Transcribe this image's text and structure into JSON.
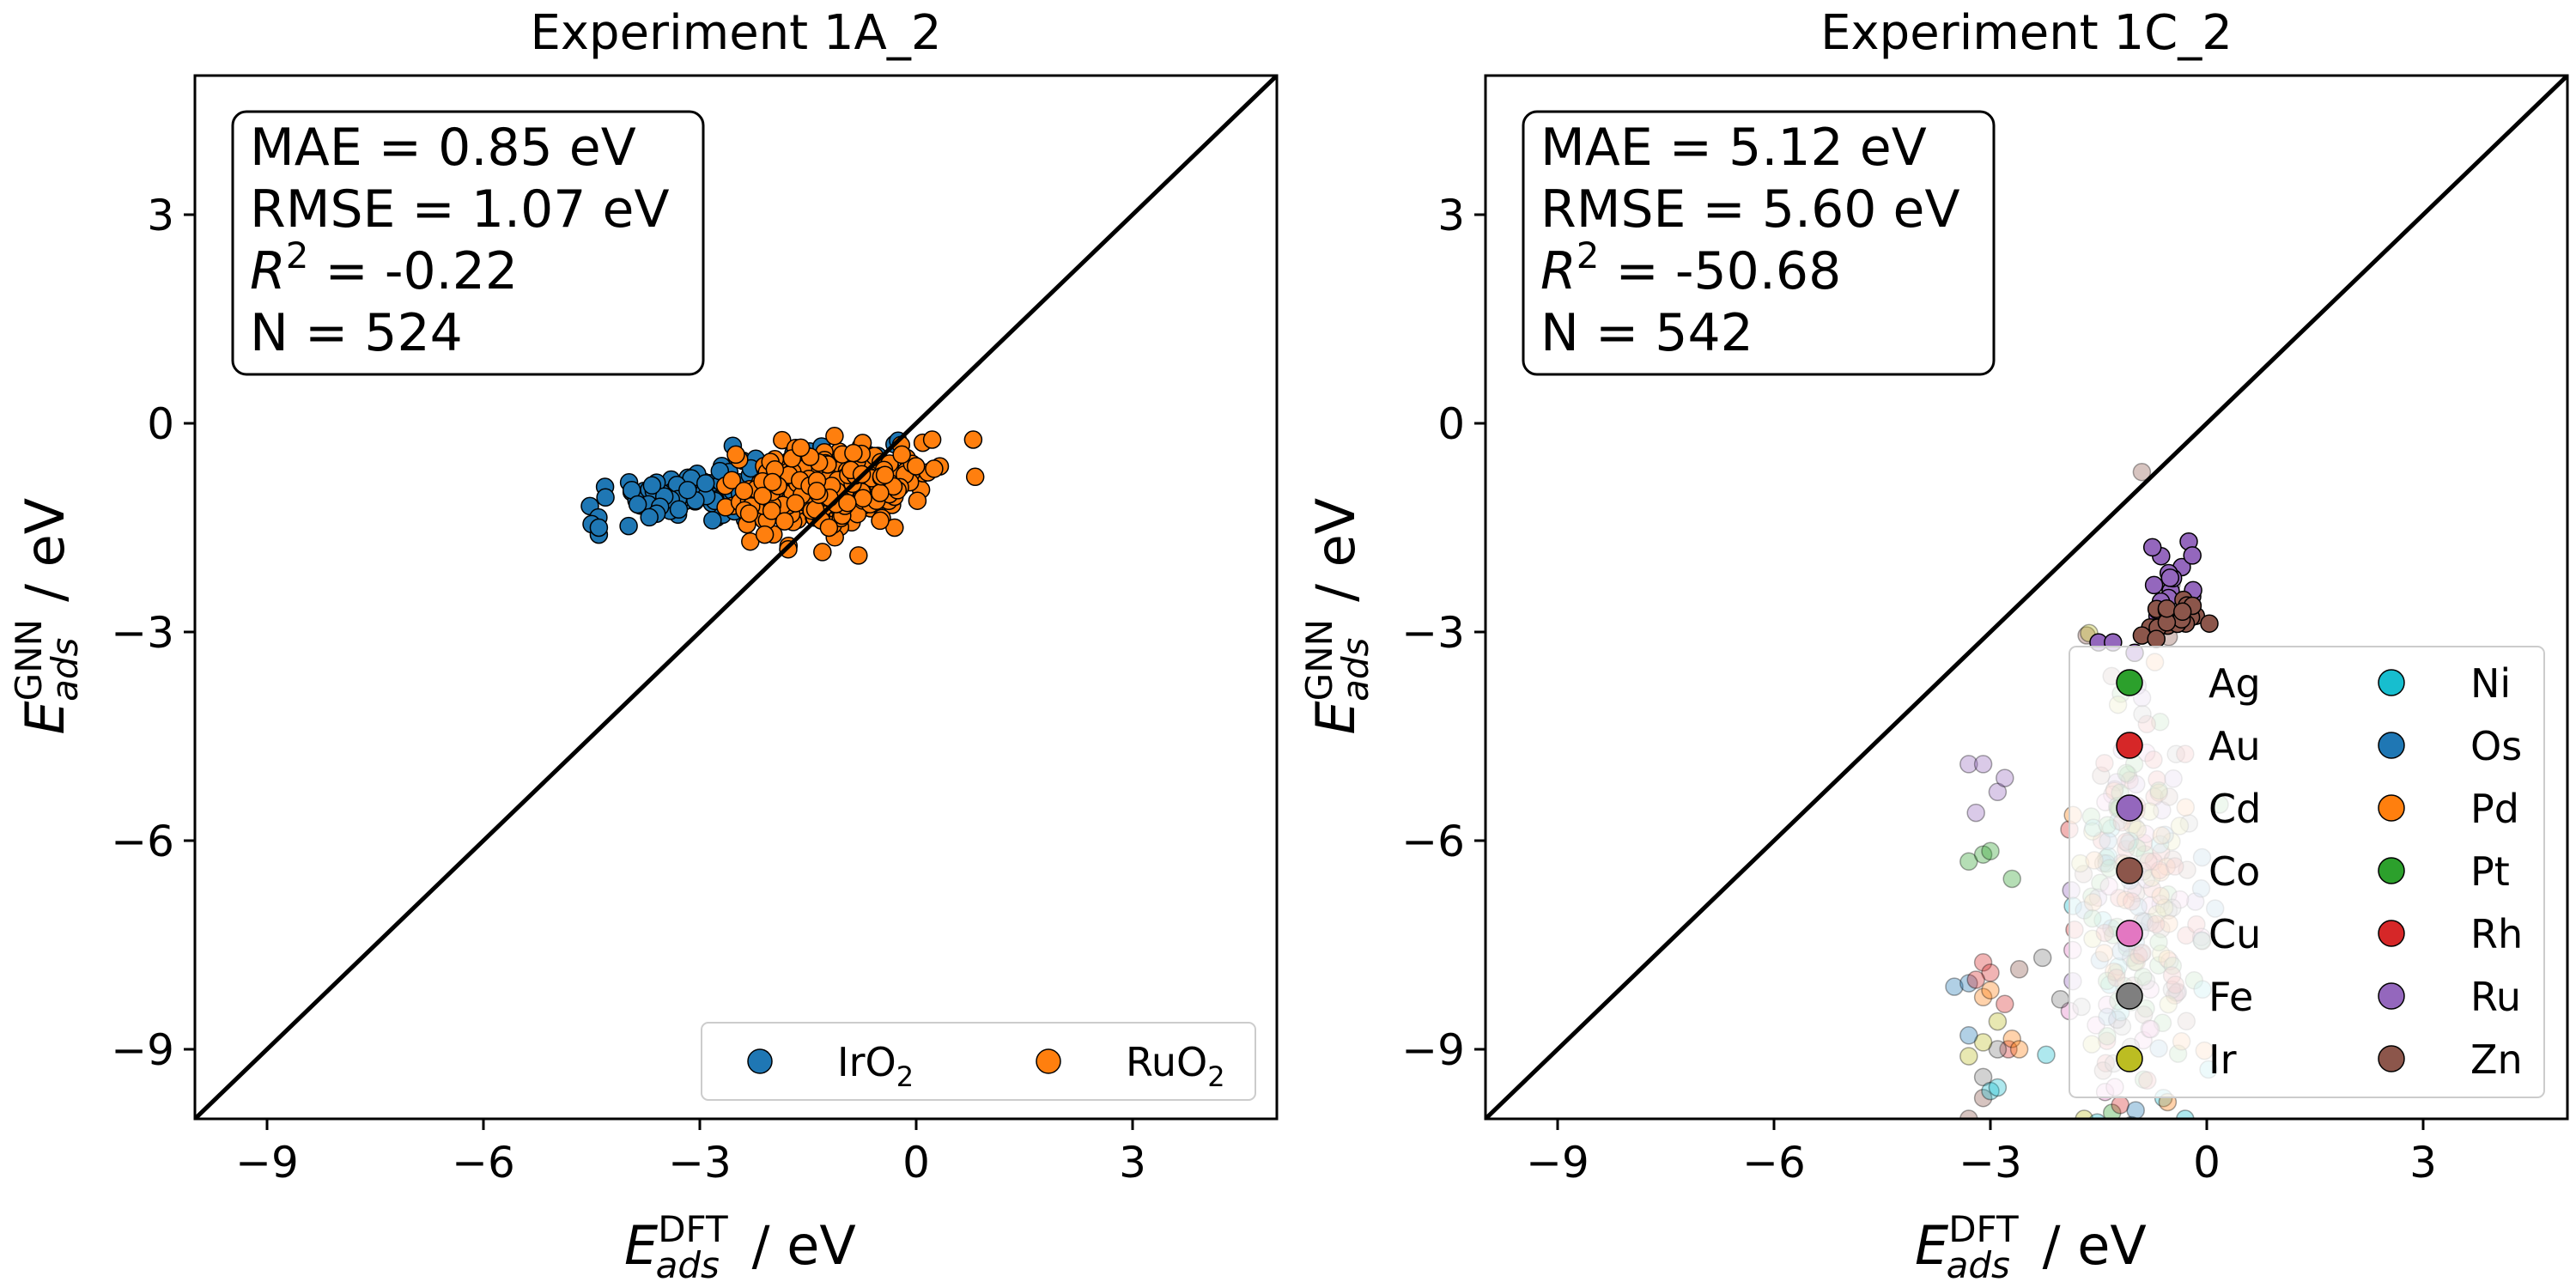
{
  "chart_data": [
    {
      "type": "scatter",
      "title": "Experiment 1A_2",
      "xlabel": {
        "base": "E",
        "sub": "ads",
        "sup": "DFT",
        "unit": " / eV"
      },
      "ylabel": {
        "base": "E",
        "sub": "ads",
        "sup": "GNN",
        "unit": " / eV"
      },
      "xlim": [
        -10,
        5
      ],
      "ylim": [
        -10,
        5
      ],
      "xticks": [
        -9,
        -6,
        -3,
        0,
        3
      ],
      "yticks": [
        -9,
        -6,
        -3,
        0,
        3
      ],
      "parity_line": true,
      "stats": [
        {
          "text": "MAE = 0.85 eV"
        },
        {
          "text": "RMSE = 1.07 eV"
        },
        {
          "pre": "R",
          "sup": "2",
          "text": " = -0.22"
        },
        {
          "text": "N = 524"
        }
      ],
      "legend": {
        "position": "lower-right",
        "columns": 2,
        "entries": [
          {
            "base": "IrO",
            "sub": "2",
            "color": "#1f77b4"
          },
          {
            "base": "RuO",
            "sub": "2",
            "color": "#ff7f0e"
          }
        ]
      },
      "series": [
        {
          "name": "IrO2",
          "color": "#1f77b4",
          "alpha": 1,
          "clusters": [
            {
              "cx": -2.2,
              "cy": -0.9,
              "sx": 0.85,
              "sy": 0.22,
              "n": 150,
              "rho": 0.5
            },
            {
              "cx": -3.4,
              "cy": -1.0,
              "sx": 0.3,
              "sy": 0.15,
              "n": 22,
              "rho": 0.2
            }
          ],
          "points": [
            [
              -4.5,
              -1.45
            ],
            [
              -4.4,
              -1.6
            ],
            [
              -4.4,
              -1.5
            ],
            [
              -3.6,
              -1.3
            ],
            [
              -3.7,
              -1.35
            ],
            [
              -0.3,
              -0.3
            ],
            [
              -0.25,
              -0.25
            ]
          ]
        },
        {
          "name": "RuO2",
          "color": "#ff7f0e",
          "alpha": 1,
          "clusters": [
            {
              "cx": -1.2,
              "cy": -0.9,
              "sx": 0.65,
              "sy": 0.28,
              "n": 330,
              "rho": 0.25
            }
          ],
          "points": [
            [
              -0.8,
              -1.9
            ],
            [
              -1.3,
              -1.85
            ],
            [
              -0.3,
              -1.5
            ],
            [
              -0.5,
              -1.4
            ],
            [
              -2.5,
              -0.45
            ],
            [
              -1.6,
              -0.35
            ],
            [
              -2.3,
              -1.7
            ],
            [
              -2.1,
              -1.6
            ],
            [
              -0.2,
              -0.45
            ]
          ]
        }
      ]
    },
    {
      "type": "scatter",
      "title": "Experiment 1C_2",
      "xlabel": {
        "base": "E",
        "sub": "ads",
        "sup": "DFT",
        "unit": " / eV"
      },
      "ylabel": {
        "base": "E",
        "sub": "ads",
        "sup": "GNN",
        "unit": " / eV"
      },
      "xlim": [
        -10,
        5
      ],
      "ylim": [
        -10,
        5
      ],
      "xticks": [
        -9,
        -6,
        -3,
        0,
        3
      ],
      "yticks": [
        -9,
        -6,
        -3,
        0,
        3
      ],
      "parity_line": true,
      "stats": [
        {
          "text": "MAE = 5.12 eV"
        },
        {
          "text": "RMSE = 5.60 eV"
        },
        {
          "pre": "R",
          "sup": "2",
          "text": " = -50.68"
        },
        {
          "text": "N = 542"
        }
      ],
      "legend": {
        "position": "lower-right",
        "columns": 2,
        "entries": [
          {
            "base": "Ag",
            "color": "#2ca02c"
          },
          {
            "base": "Au",
            "color": "#d62728"
          },
          {
            "base": "Cd",
            "color": "#9467bd"
          },
          {
            "base": "Co",
            "color": "#8c564b"
          },
          {
            "base": "Cu",
            "color": "#e377c2"
          },
          {
            "base": "Fe",
            "color": "#7f7f7f"
          },
          {
            "base": "Ir",
            "color": "#bcbd22"
          },
          {
            "base": "Ni",
            "color": "#17becf"
          },
          {
            "base": "Os",
            "color": "#1f77b4"
          },
          {
            "base": "Pd",
            "color": "#ff7f0e"
          },
          {
            "base": "Pt",
            "color": "#2ca02c"
          },
          {
            "base": "Rh",
            "color": "#d62728"
          },
          {
            "base": "Ru",
            "color": "#9467bd"
          },
          {
            "base": "Zn",
            "color": "#8c564b"
          }
        ]
      },
      "series": [
        {
          "name": "Ag",
          "color": "#2ca02c",
          "alpha": 0.35,
          "clusters": [
            {
              "cx": -1.0,
              "cy": -6.8,
              "sx": 0.45,
              "sy": 1.6,
              "n": 20,
              "rho": 0
            }
          ],
          "points": [
            [
              -3.3,
              -6.3
            ],
            [
              -3.1,
              -6.2
            ],
            [
              -3.0,
              -6.15
            ],
            [
              -2.7,
              -6.55
            ]
          ]
        },
        {
          "name": "Au",
          "color": "#d62728",
          "alpha": 0.35,
          "clusters": [
            {
              "cx": -1.0,
              "cy": -7.0,
              "sx": 0.45,
              "sy": 1.6,
              "n": 20,
              "rho": 0
            }
          ],
          "points": [
            [
              -3.1,
              -7.75
            ],
            [
              -3.0,
              -7.9
            ],
            [
              -2.8,
              -8.35
            ],
            [
              -2.75,
              -9.0
            ],
            [
              -1.4,
              -9.2
            ],
            [
              -1.2,
              -9.8
            ]
          ]
        },
        {
          "name": "Cd",
          "color": "#9467bd",
          "alpha": 0.35,
          "clusters": [
            {
              "cx": -1.0,
              "cy": -6.6,
              "sx": 0.45,
              "sy": 1.6,
              "n": 20,
              "rho": 0
            }
          ],
          "points": [
            [
              -3.3,
              -4.9
            ],
            [
              -3.1,
              -4.9
            ],
            [
              -2.9,
              -5.3
            ],
            [
              -2.8,
              -5.1
            ],
            [
              -3.2,
              -5.6
            ]
          ]
        },
        {
          "name": "Co",
          "color": "#8c564b",
          "alpha": 0.35,
          "clusters": [
            {
              "cx": -1.0,
              "cy": -6.9,
              "sx": 0.45,
              "sy": 1.6,
              "n": 20,
              "rho": 0
            }
          ],
          "points": [
            [
              -0.9,
              -0.7
            ],
            [
              -2.6,
              -7.85
            ],
            [
              -3.1,
              -9.7
            ],
            [
              -3.3,
              -10.0
            ]
          ]
        },
        {
          "name": "Cu",
          "color": "#e377c2",
          "alpha": 0.35,
          "clusters": [
            {
              "cx": -1.0,
              "cy": -7.0,
              "sx": 0.45,
              "sy": 1.6,
              "n": 20,
              "rho": 0
            }
          ],
          "points": [
            [
              -1.9,
              -8.45
            ]
          ]
        },
        {
          "name": "Fe",
          "color": "#7f7f7f",
          "alpha": 0.35,
          "clusters": [
            {
              "cx": -1.0,
              "cy": -7.2,
              "sx": 0.45,
              "sy": 1.6,
              "n": 20,
              "rho": 0
            }
          ],
          "points": [
            [
              -3.1,
              -9.4
            ],
            [
              -2.9,
              -9.0
            ]
          ]
        },
        {
          "name": "Ir",
          "color": "#bcbd22",
          "alpha": 0.35,
          "clusters": [
            {
              "cx": -1.0,
              "cy": -7.2,
              "sx": 0.45,
              "sy": 1.6,
              "n": 20,
              "rho": 0
            }
          ],
          "points": [
            [
              -3.1,
              -8.9
            ],
            [
              -3.3,
              -9.1
            ],
            [
              -2.9,
              -8.6
            ],
            [
              -1.7,
              -10.0
            ]
          ]
        },
        {
          "name": "Ni",
          "color": "#17becf",
          "alpha": 0.35,
          "clusters": [
            {
              "cx": -1.0,
              "cy": -7.0,
              "sx": 0.45,
              "sy": 1.6,
              "n": 20,
              "rho": 0
            }
          ],
          "points": [
            [
              -3.0,
              -9.6
            ],
            [
              -2.9,
              -9.55
            ],
            [
              -0.3,
              -10.0
            ],
            [
              -0.6,
              -9.7
            ]
          ]
        },
        {
          "name": "Os",
          "color": "#1f77b4",
          "alpha": 0.35,
          "clusters": [
            {
              "cx": -1.0,
              "cy": -7.0,
              "sx": 0.45,
              "sy": 1.6,
              "n": 20,
              "rho": 0
            }
          ],
          "points": [
            [
              -3.5,
              -8.1
            ],
            [
              -3.3,
              -8.05
            ],
            [
              -3.3,
              -8.8
            ],
            [
              -1.7,
              -7.0
            ]
          ]
        },
        {
          "name": "Pd",
          "color": "#ff7f0e",
          "alpha": 0.35,
          "clusters": [
            {
              "cx": -1.0,
              "cy": -6.7,
              "sx": 0.45,
              "sy": 1.6,
              "n": 20,
              "rho": 0
            }
          ],
          "points": [
            [
              -3.1,
              -8.25
            ],
            [
              -3.0,
              -8.15
            ],
            [
              -2.7,
              -8.85
            ],
            [
              -2.6,
              -9.0
            ]
          ]
        },
        {
          "name": "Pt",
          "color": "#2ca02c",
          "alpha": 0.35,
          "clusters": [
            {
              "cx": -1.0,
              "cy": -6.9,
              "sx": 0.45,
              "sy": 1.6,
              "n": 20,
              "rho": 0
            }
          ],
          "points": []
        },
        {
          "name": "Rh",
          "color": "#d62728",
          "alpha": 0.35,
          "clusters": [
            {
              "cx": -1.0,
              "cy": -7.0,
              "sx": 0.45,
              "sy": 1.6,
              "n": 20,
              "rho": 0
            }
          ],
          "points": [
            [
              -3.2,
              -8.0
            ]
          ]
        },
        {
          "name": "Ru",
          "color": "#9467bd",
          "alpha": 1,
          "clusters": [
            {
              "cx": -0.5,
              "cy": -2.3,
              "sx": 0.18,
              "sy": 0.3,
              "n": 16,
              "rho": 0
            }
          ],
          "points": [
            [
              -0.25,
              -1.7
            ],
            [
              -0.2,
              -1.9
            ],
            [
              -1.5,
              -3.15
            ],
            [
              -1.3,
              -3.15
            ],
            [
              -1.0,
              -3.3
            ]
          ]
        },
        {
          "name": "Zn",
          "color": "#8c564b",
          "alpha": 1,
          "clusters": [
            {
              "cx": -0.4,
              "cy": -2.8,
              "sx": 0.22,
              "sy": 0.18,
              "n": 22,
              "rho": 0
            }
          ],
          "points": [
            [
              -0.9,
              -3.05
            ],
            [
              -0.7,
              -3.1
            ]
          ]
        }
      ]
    }
  ]
}
